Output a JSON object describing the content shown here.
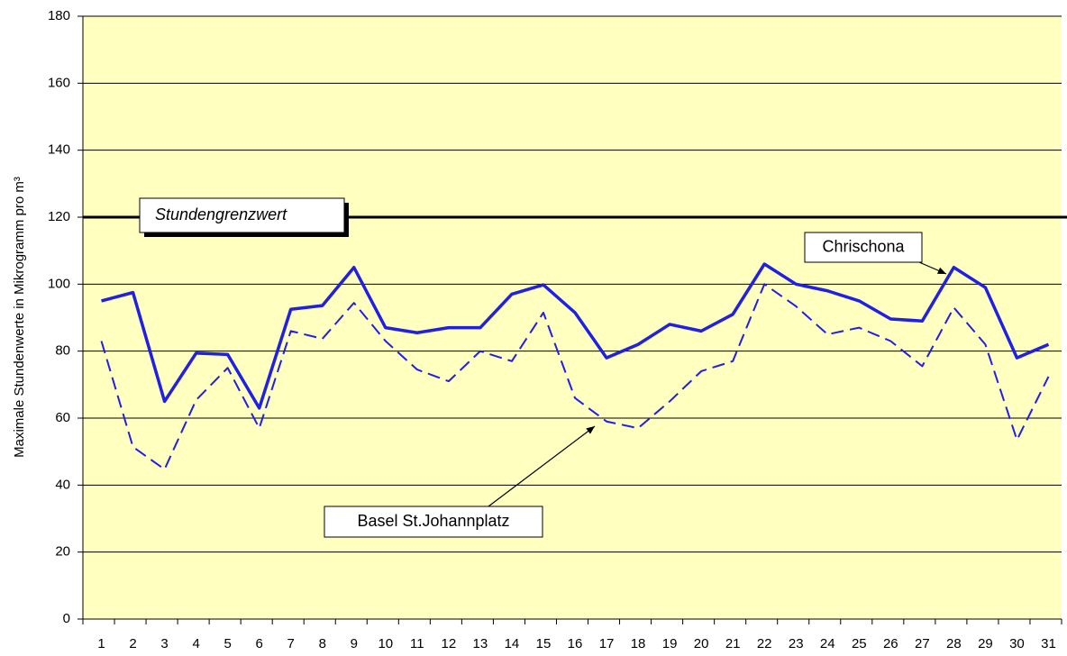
{
  "chart_data": {
    "type": "line",
    "y_label": "Maximale Stundenwerte in Mikrogramm pro m³",
    "categories": [
      "1",
      "2",
      "3",
      "4",
      "5",
      "6",
      "7",
      "8",
      "9",
      "10",
      "11",
      "12",
      "13",
      "14",
      "15",
      "16",
      "17",
      "18",
      "19",
      "20",
      "21",
      "22",
      "23",
      "24",
      "25",
      "26",
      "27",
      "28",
      "29",
      "30",
      "31"
    ],
    "series": [
      {
        "name": "Chrischona",
        "color": "#1f1fe6",
        "style": "solid",
        "values": [
          95,
          97.5,
          65,
          79.4,
          79,
          63,
          92.5,
          93.6,
          105,
          87,
          85.5,
          87,
          87,
          97,
          99.8,
          91.5,
          78,
          82,
          88,
          86,
          91,
          106,
          100,
          98,
          95,
          89.6,
          89,
          105,
          99,
          78,
          82
        ]
      },
      {
        "name": "Basel St.Johannplatz",
        "color": "#1f1fe6",
        "style": "dashed",
        "values": [
          83,
          51.4,
          44.7,
          65.4,
          75,
          57,
          86,
          83.7,
          94.4,
          83,
          74.5,
          71,
          80,
          77,
          91.5,
          66,
          59,
          57,
          65,
          74,
          77,
          100,
          93.4,
          85,
          87,
          83,
          75.5,
          93,
          82,
          53.5,
          72.4
        ]
      }
    ],
    "hline": {
      "value": 120,
      "label": "Stundengrenzwert"
    },
    "ylim": [
      0,
      180
    ],
    "yticks": [
      0,
      20,
      40,
      60,
      80,
      100,
      120,
      140,
      160,
      180
    ],
    "grid": true,
    "background": "#ffffc0"
  }
}
